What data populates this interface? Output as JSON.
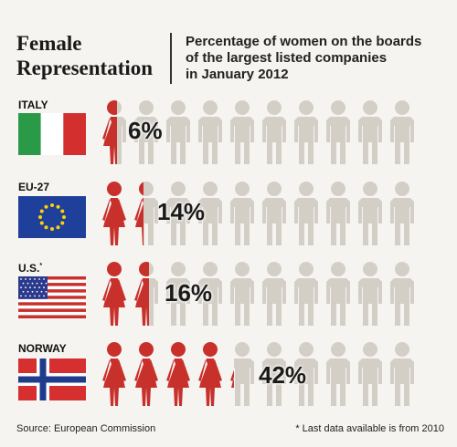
{
  "header": {
    "title_line1": "Female",
    "title_line2": "Representation",
    "subtitle_line1": "Percentage of women on the boards",
    "subtitle_line2": "of the largest listed companies",
    "subtitle_line3": "in January 2012"
  },
  "footer": {
    "source": "Source: European Commission",
    "footnote": "* Last data available is from 2010"
  },
  "colors": {
    "female": "#c8312b",
    "male": "#d3cfc7",
    "background": "#f6f4f1"
  },
  "chart_data": {
    "type": "pictogram",
    "unit_per_figure_percent": 10,
    "categories": [
      "ITALY",
      "EU-27",
      "U.S.",
      "NORWAY"
    ],
    "values": [
      6,
      14,
      16,
      42
    ],
    "value_labels": [
      "6%",
      "14%",
      "16%",
      "42%"
    ],
    "footnote_markers": [
      "",
      "",
      "*",
      ""
    ],
    "flags": [
      "italy-flag-icon",
      "eu-flag-icon",
      "us-flag-icon",
      "norway-flag-icon"
    ]
  }
}
